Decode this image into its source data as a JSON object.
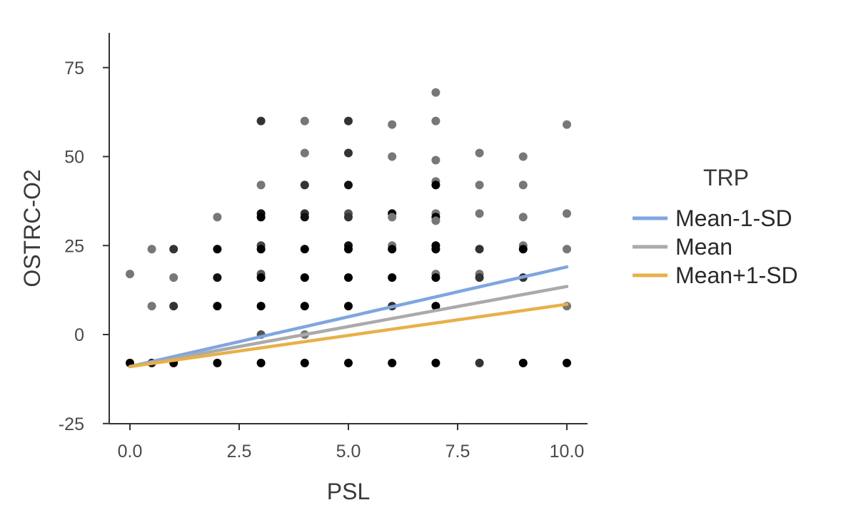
{
  "chart_data": {
    "type": "scatter",
    "title": "",
    "xlabel": "PSL",
    "ylabel": "OSTRC-O2",
    "xlim": [
      -0.5,
      10.5
    ],
    "ylim": [
      -25,
      85
    ],
    "x_ticks": [
      0.0,
      2.5,
      5.0,
      7.5,
      10.0
    ],
    "x_tick_labels": [
      "0.0",
      "2.5",
      "5.0",
      "7.5",
      "10.0"
    ],
    "y_ticks": [
      -25,
      0,
      25,
      50,
      75
    ],
    "y_tick_labels": [
      "-25",
      "0",
      "25",
      "50",
      "75"
    ],
    "grid": false,
    "legend": {
      "title": "TRP",
      "position": "right",
      "entries": [
        "Mean-1-SD",
        "Mean",
        "Mean+1-SD"
      ]
    },
    "points": [
      {
        "x": 0,
        "y": 17,
        "c": "#777777"
      },
      {
        "x": 0,
        "y": -8,
        "c": "#000000"
      },
      {
        "x": 0.5,
        "y": 24,
        "c": "#777777"
      },
      {
        "x": 0.5,
        "y": 8,
        "c": "#777777"
      },
      {
        "x": 0.5,
        "y": -8,
        "c": "#111111"
      },
      {
        "x": 1,
        "y": 24,
        "c": "#333333"
      },
      {
        "x": 1,
        "y": 16,
        "c": "#777777"
      },
      {
        "x": 1,
        "y": 8,
        "c": "#333333"
      },
      {
        "x": 1,
        "y": -8,
        "c": "#000000"
      },
      {
        "x": 2,
        "y": 33,
        "c": "#777777"
      },
      {
        "x": 2,
        "y": 24,
        "c": "#000000"
      },
      {
        "x": 2,
        "y": 16,
        "c": "#111111"
      },
      {
        "x": 2,
        "y": 8,
        "c": "#000000"
      },
      {
        "x": 2,
        "y": -8,
        "c": "#000000"
      },
      {
        "x": 3,
        "y": 60,
        "c": "#333333"
      },
      {
        "x": 3,
        "y": 42,
        "c": "#777777"
      },
      {
        "x": 3,
        "y": 34,
        "c": "#111111"
      },
      {
        "x": 3,
        "y": 33,
        "c": "#000000"
      },
      {
        "x": 3,
        "y": 25,
        "c": "#444444"
      },
      {
        "x": 3,
        "y": 24,
        "c": "#000000"
      },
      {
        "x": 3,
        "y": 17,
        "c": "#555555"
      },
      {
        "x": 3,
        "y": 16,
        "c": "#000000"
      },
      {
        "x": 3,
        "y": 8,
        "c": "#000000"
      },
      {
        "x": 3,
        "y": 0,
        "c": "#555555"
      },
      {
        "x": 3,
        "y": -8,
        "c": "#000000"
      },
      {
        "x": 4,
        "y": 60,
        "c": "#777777"
      },
      {
        "x": 4,
        "y": 51,
        "c": "#777777"
      },
      {
        "x": 4,
        "y": 42,
        "c": "#333333"
      },
      {
        "x": 4,
        "y": 34,
        "c": "#333333"
      },
      {
        "x": 4,
        "y": 33,
        "c": "#111111"
      },
      {
        "x": 4,
        "y": 24,
        "c": "#000000"
      },
      {
        "x": 4,
        "y": 16,
        "c": "#000000"
      },
      {
        "x": 4,
        "y": 8,
        "c": "#000000"
      },
      {
        "x": 4,
        "y": 0,
        "c": "#777777"
      },
      {
        "x": 4,
        "y": -8,
        "c": "#000000"
      },
      {
        "x": 5,
        "y": 60,
        "c": "#333333"
      },
      {
        "x": 5,
        "y": 51,
        "c": "#333333"
      },
      {
        "x": 5,
        "y": 42,
        "c": "#111111"
      },
      {
        "x": 5,
        "y": 34,
        "c": "#555555"
      },
      {
        "x": 5,
        "y": 33,
        "c": "#333333"
      },
      {
        "x": 5,
        "y": 25,
        "c": "#111111"
      },
      {
        "x": 5,
        "y": 24,
        "c": "#000000"
      },
      {
        "x": 5,
        "y": 16,
        "c": "#000000"
      },
      {
        "x": 5,
        "y": 8,
        "c": "#000000"
      },
      {
        "x": 5,
        "y": -8,
        "c": "#000000"
      },
      {
        "x": 6,
        "y": 59,
        "c": "#777777"
      },
      {
        "x": 6,
        "y": 50,
        "c": "#777777"
      },
      {
        "x": 6,
        "y": 34,
        "c": "#000000"
      },
      {
        "x": 6,
        "y": 33,
        "c": "#777777"
      },
      {
        "x": 6,
        "y": 25,
        "c": "#777777"
      },
      {
        "x": 6,
        "y": 24,
        "c": "#000000"
      },
      {
        "x": 6,
        "y": 16,
        "c": "#000000"
      },
      {
        "x": 6,
        "y": 8,
        "c": "#333333"
      },
      {
        "x": 6,
        "y": -8,
        "c": "#000000"
      },
      {
        "x": 7,
        "y": 68,
        "c": "#777777"
      },
      {
        "x": 7,
        "y": 60,
        "c": "#777777"
      },
      {
        "x": 7,
        "y": 49,
        "c": "#777777"
      },
      {
        "x": 7,
        "y": 43,
        "c": "#777777"
      },
      {
        "x": 7,
        "y": 42,
        "c": "#000000"
      },
      {
        "x": 7,
        "y": 34,
        "c": "#777777"
      },
      {
        "x": 7,
        "y": 33,
        "c": "#000000"
      },
      {
        "x": 7,
        "y": 32,
        "c": "#777777"
      },
      {
        "x": 7,
        "y": 25,
        "c": "#000000"
      },
      {
        "x": 7,
        "y": 24,
        "c": "#000000"
      },
      {
        "x": 7,
        "y": 17,
        "c": "#777777"
      },
      {
        "x": 7,
        "y": 16,
        "c": "#000000"
      },
      {
        "x": 7,
        "y": 8,
        "c": "#000000"
      },
      {
        "x": 7,
        "y": -8,
        "c": "#000000"
      },
      {
        "x": 8,
        "y": 51,
        "c": "#777777"
      },
      {
        "x": 8,
        "y": 42,
        "c": "#777777"
      },
      {
        "x": 8,
        "y": 34,
        "c": "#777777"
      },
      {
        "x": 8,
        "y": 24,
        "c": "#333333"
      },
      {
        "x": 8,
        "y": 17,
        "c": "#777777"
      },
      {
        "x": 8,
        "y": 16,
        "c": "#333333"
      },
      {
        "x": 8,
        "y": -8,
        "c": "#333333"
      },
      {
        "x": 9,
        "y": 50,
        "c": "#777777"
      },
      {
        "x": 9,
        "y": 42,
        "c": "#777777"
      },
      {
        "x": 9,
        "y": 33,
        "c": "#777777"
      },
      {
        "x": 9,
        "y": 25,
        "c": "#777777"
      },
      {
        "x": 9,
        "y": 24,
        "c": "#000000"
      },
      {
        "x": 9,
        "y": 16,
        "c": "#333333"
      },
      {
        "x": 9,
        "y": -8,
        "c": "#000000"
      },
      {
        "x": 10,
        "y": 59,
        "c": "#777777"
      },
      {
        "x": 10,
        "y": 34,
        "c": "#777777"
      },
      {
        "x": 10,
        "y": 24,
        "c": "#777777"
      },
      {
        "x": 10,
        "y": 8,
        "c": "#777777"
      },
      {
        "x": 10,
        "y": -8,
        "c": "#000000"
      }
    ],
    "series": [
      {
        "name": "Mean-1-SD",
        "color": "#7ea6e0",
        "x": [
          0,
          10
        ],
        "y": [
          -9,
          19
        ]
      },
      {
        "name": "Mean",
        "color": "#aaaaaa",
        "x": [
          0,
          10
        ],
        "y": [
          -9,
          13.5
        ]
      },
      {
        "name": "Mean+1-SD",
        "color": "#e8b04a",
        "x": [
          0,
          10
        ],
        "y": [
          -9,
          8.5
        ]
      }
    ]
  }
}
